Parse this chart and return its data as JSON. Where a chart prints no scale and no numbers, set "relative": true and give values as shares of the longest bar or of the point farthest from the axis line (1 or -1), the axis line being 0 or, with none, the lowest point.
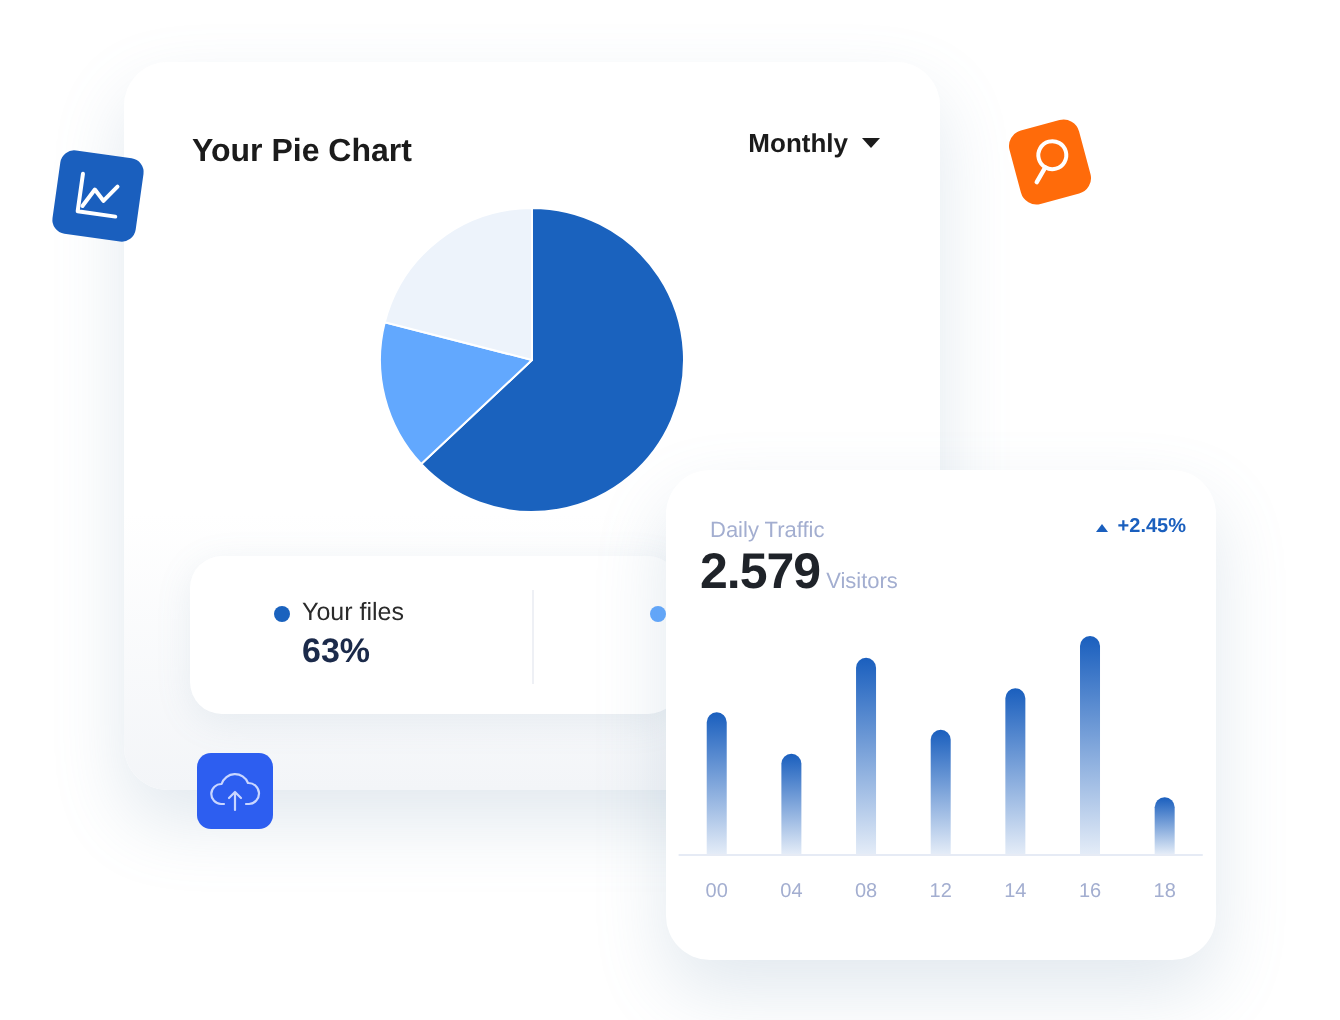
{
  "chart_data": [
    {
      "type": "pie",
      "title": "Your Pie Chart",
      "categories": [
        "Your files",
        null,
        null
      ],
      "values": [
        63,
        16,
        21
      ],
      "colors": [
        "#1a62be",
        "#62a8fe",
        "#edf3fb"
      ],
      "value_labels": [
        "63%",
        null,
        null
      ],
      "legend": "bottom",
      "annotations": [
        "Monthly"
      ]
    },
    {
      "type": "bar",
      "title": "Daily Traffic",
      "annotations": [
        "2.579",
        "Visitors",
        "+2.45%"
      ],
      "categories": [
        "00",
        "04",
        "08",
        "12",
        "14",
        "16",
        "18"
      ],
      "values": [
        0.65,
        0.46,
        0.9,
        0.57,
        0.76,
        1,
        0.26
      ],
      "color": "#1a5fbe",
      "relative": true
    }
  ]
}
